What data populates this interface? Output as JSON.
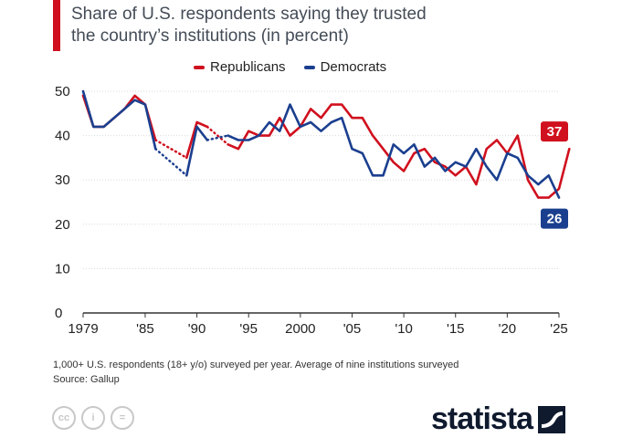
{
  "header": {
    "title_line1": "Share of U.S. respondents saying they trusted",
    "title_line2": "the country’s institutions (in percent)"
  },
  "legend": {
    "republicans": "Republicans",
    "democrats": "Democrats"
  },
  "colors": {
    "republicans": "#d0101e",
    "democrats": "#1b3f8f",
    "accent": "#d0101e"
  },
  "chart_data": {
    "type": "line",
    "title": "Share of U.S. respondents saying they trusted the country’s institutions (in percent)",
    "xlabel": "",
    "ylabel": "",
    "xlim": [
      1979,
      2025
    ],
    "ylim": [
      0,
      50
    ],
    "y_ticks": [
      "0",
      "10",
      "20",
      "30",
      "40",
      "50"
    ],
    "x_ticks": [
      {
        "value": 1979,
        "label": "1979"
      },
      {
        "value": 1985,
        "label": "'85"
      },
      {
        "value": 1990,
        "label": "'90"
      },
      {
        "value": 1995,
        "label": "'95"
      },
      {
        "value": 2000,
        "label": "2000"
      },
      {
        "value": 2005,
        "label": "'05"
      },
      {
        "value": 2010,
        "label": "'10"
      },
      {
        "value": 2015,
        "label": "'15"
      },
      {
        "value": 2020,
        "label": "'20"
      },
      {
        "value": 2025,
        "label": "'25"
      }
    ],
    "gaps_dotted": true,
    "series": [
      {
        "name": "Republicans",
        "segments": [
          [
            [
              1979,
              49
            ],
            [
              1980,
              42
            ],
            [
              1981,
              42
            ],
            [
              1983,
              46
            ],
            [
              1984,
              49
            ],
            [
              1985,
              47
            ],
            [
              1986,
              39
            ]
          ],
          [
            [
              1989,
              35
            ],
            [
              1990,
              43
            ],
            [
              1991,
              42
            ]
          ],
          [
            [
              1993,
              38
            ],
            [
              1994,
              37
            ],
            [
              1995,
              41
            ],
            [
              1996,
              40
            ],
            [
              1997,
              40
            ],
            [
              1998,
              44
            ],
            [
              1999,
              40
            ],
            [
              2000,
              42
            ],
            [
              2001,
              46
            ],
            [
              2002,
              44
            ],
            [
              2003,
              47
            ],
            [
              2004,
              47
            ],
            [
              2005,
              44
            ],
            [
              2006,
              44
            ],
            [
              2007,
              40
            ],
            [
              2008,
              37
            ],
            [
              2009,
              34
            ],
            [
              2010,
              32
            ],
            [
              2011,
              36
            ],
            [
              2012,
              37
            ],
            [
              2013,
              34
            ],
            [
              2014,
              33
            ],
            [
              2015,
              31
            ],
            [
              2016,
              33
            ],
            [
              2017,
              29
            ],
            [
              2018,
              37
            ],
            [
              2019,
              39
            ],
            [
              2020,
              36
            ],
            [
              2021,
              40
            ],
            [
              2022,
              30
            ],
            [
              2023,
              26
            ],
            [
              2024,
              26
            ],
            [
              2025,
              28
            ],
            [
              2026,
              37
            ]
          ]
        ],
        "end_label": "37"
      },
      {
        "name": "Democrats",
        "segments": [
          [
            [
              1979,
              50
            ],
            [
              1980,
              42
            ],
            [
              1981,
              42
            ],
            [
              1983,
              46
            ],
            [
              1984,
              48
            ],
            [
              1985,
              47
            ],
            [
              1986,
              37
            ]
          ],
          [
            [
              1989,
              31
            ],
            [
              1990,
              42
            ],
            [
              1991,
              39
            ]
          ],
          [
            [
              1993,
              40
            ],
            [
              1994,
              39
            ],
            [
              1995,
              39
            ],
            [
              1996,
              40
            ],
            [
              1997,
              43
            ],
            [
              1998,
              41
            ],
            [
              1999,
              47
            ],
            [
              2000,
              42
            ],
            [
              2001,
              43
            ],
            [
              2002,
              41
            ],
            [
              2003,
              43
            ],
            [
              2004,
              44
            ],
            [
              2005,
              37
            ],
            [
              2006,
              36
            ],
            [
              2007,
              31
            ],
            [
              2008,
              31
            ],
            [
              2009,
              38
            ],
            [
              2010,
              36
            ],
            [
              2011,
              38
            ],
            [
              2012,
              33
            ],
            [
              2013,
              35
            ],
            [
              2014,
              32
            ],
            [
              2015,
              34
            ],
            [
              2016,
              33
            ],
            [
              2017,
              37
            ],
            [
              2018,
              33
            ],
            [
              2019,
              30
            ],
            [
              2020,
              36
            ],
            [
              2021,
              35
            ],
            [
              2022,
              31
            ],
            [
              2023,
              29
            ],
            [
              2024,
              31
            ],
            [
              2025,
              26
            ]
          ]
        ],
        "end_label": "26"
      }
    ]
  },
  "footnote": {
    "line1": "1,000+ U.S. respondents (18+ y/o) surveyed per year. Average of nine institutions surveyed",
    "line2": "Source: Gallup"
  },
  "license_icons": [
    "cc-icon",
    "by-icon",
    "nd-icon"
  ],
  "license_glyphs": [
    "cc",
    "i",
    "="
  ],
  "brand": {
    "name": "statista"
  }
}
